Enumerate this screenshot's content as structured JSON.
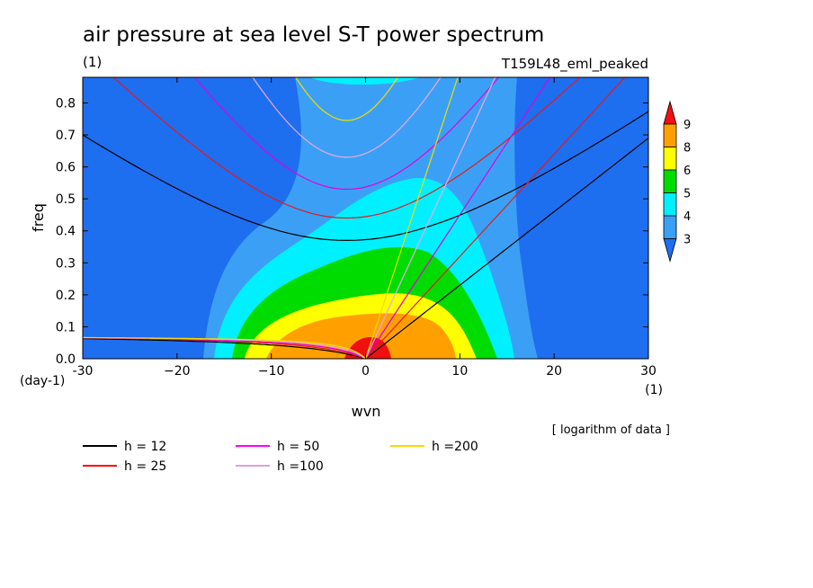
{
  "chart_data": {
    "type": "heatmap",
    "title": "air pressure at sea level S-T power spectrum",
    "subtitle_left": "(1)",
    "subtitle_right": "T159L48_eml_peaked",
    "xlabel": "wvn",
    "ylabel": "freq",
    "x_unit": "(1)",
    "y_unit": "(day-1)",
    "xlim": [
      -30,
      30
    ],
    "ylim": [
      0,
      0.88
    ],
    "x_ticks": [
      -30,
      -20,
      -10,
      0,
      10,
      20,
      30
    ],
    "x_tick_labels": [
      "-30",
      "−20",
      "−10",
      "0",
      "10",
      "20",
      "30"
    ],
    "y_ticks": [
      0.0,
      0.1,
      0.2,
      0.3,
      0.4,
      0.5,
      0.6,
      0.7,
      0.8
    ],
    "y_tick_labels": [
      "0.0",
      "0.1",
      "0.2",
      "0.3",
      "0.4",
      "0.5",
      "0.6",
      "0.7",
      "0.8"
    ],
    "note": "[ logarithm of data ]",
    "colorbar": {
      "levels": [
        3,
        4,
        5,
        6,
        8,
        9
      ],
      "labels": [
        "3",
        "4",
        "5",
        "6",
        "8",
        "9"
      ],
      "colors": [
        "#1e6ef0",
        "#3ba0f5",
        "#00f0ff",
        "#00dc00",
        "#ffff00",
        "#ffa000",
        "#f01010"
      ]
    },
    "field": {
      "background_level": "<3",
      "ridge": "spectral power peaks near wvn 0-5 at low frequency, decreasing outward",
      "approx_contours": [
        {
          "level": 3,
          "extent": "wvn -17 to 18, freq up to 0.88 (narrow waist near wvn 0)"
        },
        {
          "level": 4,
          "extent": "wvn -15 to 17, freq up to 0.57"
        },
        {
          "level": 5,
          "extent": "wvn -13 to 15, freq up to 0.36"
        },
        {
          "level": 6,
          "extent": "wvn -11 to 12, freq up to 0.25"
        },
        {
          "level": 8,
          "extent": "wvn -7 to 9, freq up to 0.14"
        },
        {
          "level": 9,
          "extent": "wvn -2 to 3, freq up to 0.07"
        }
      ]
    },
    "legend": [
      {
        "label": "h = 12",
        "color": "#000000"
      },
      {
        "label": "h = 25",
        "color": "#ff0000"
      },
      {
        "label": "h = 50",
        "color": "#ff00ff"
      },
      {
        "label": "h =100",
        "color": "#dda0dd"
      },
      {
        "label": "h =200",
        "color": "#ffd700"
      }
    ],
    "curve_colors": {
      "h12": "#000000",
      "h25": "#e41a1c",
      "h50": "#e000e0",
      "h100": "#e8a8e8",
      "h200": "#f0dc00"
    }
  }
}
